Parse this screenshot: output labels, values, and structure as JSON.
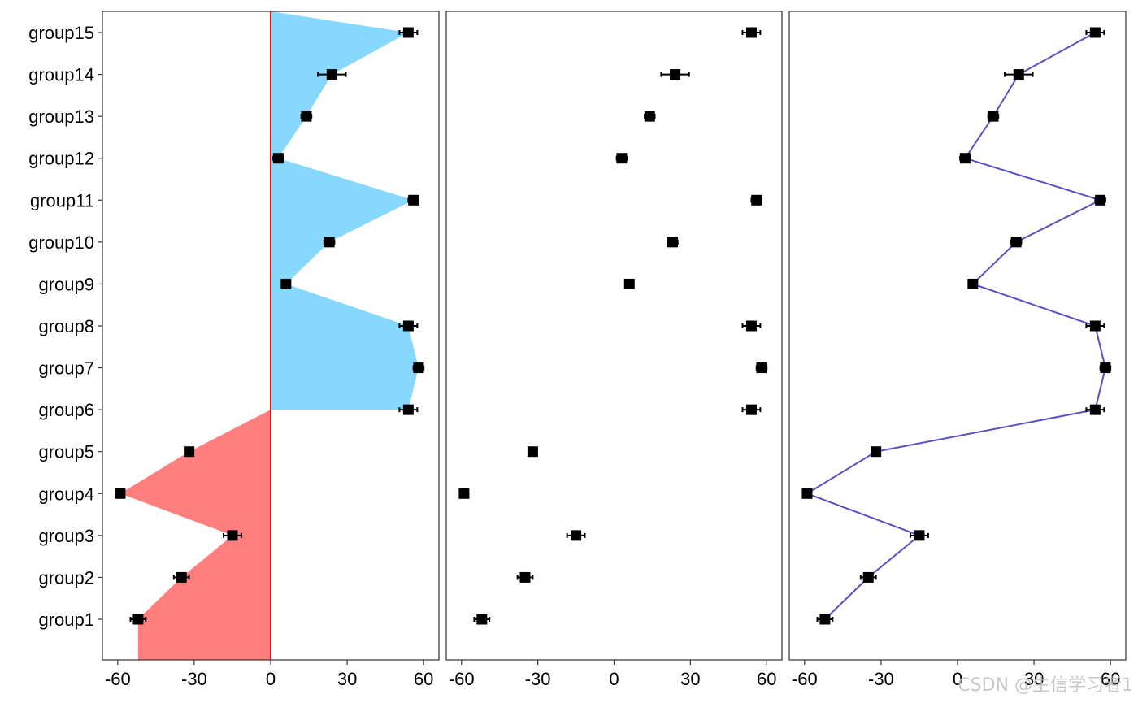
{
  "chart_data": {
    "type": "scatter",
    "categories": [
      "group1",
      "group2",
      "group3",
      "group4",
      "group5",
      "group6",
      "group7",
      "group8",
      "group9",
      "group10",
      "group11",
      "group12",
      "group13",
      "group14",
      "group15"
    ],
    "series": [
      {
        "values": [
          -52,
          -35,
          -15,
          -59,
          -32,
          54,
          58,
          54,
          6,
          23,
          56,
          3,
          14,
          24,
          54
        ],
        "errors": [
          3,
          3,
          3.5,
          1.5,
          1.5,
          3.5,
          2,
          3.5,
          1.5,
          2,
          2,
          2,
          2,
          5.5,
          3.5
        ]
      }
    ],
    "panels": [
      {
        "style": "area-diverging",
        "positive_fill": "#87D8FF",
        "negative_fill": "#FF7F7F",
        "zero_line": "#D7191C"
      },
      {
        "style": "points"
      },
      {
        "style": "line",
        "line_color": "#5A4FC4"
      }
    ],
    "xticks": [
      "-60",
      "-30",
      "0",
      "30",
      "60"
    ],
    "xlim": [
      -66,
      66
    ],
    "xlabel": "",
    "ylabel": "",
    "grid": false,
    "legend": "none",
    "point_color": "#000000"
  },
  "watermark": "CSDN @生信学习者1"
}
